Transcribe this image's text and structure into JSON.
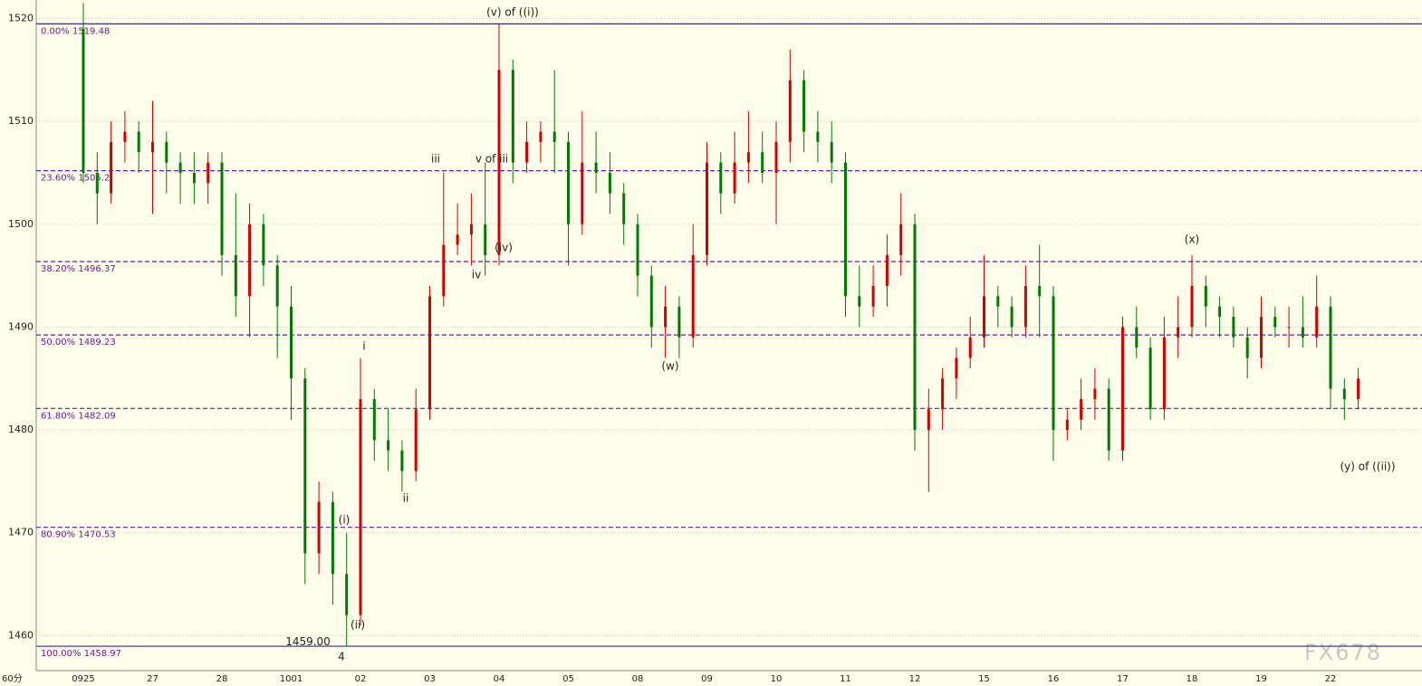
{
  "chart_data": {
    "type": "candlestick",
    "period_label": "60分",
    "watermark": "FX678",
    "categories": [
      "0925",
      null,
      null,
      null,
      null,
      "27",
      null,
      null,
      null,
      null,
      "28",
      null,
      null,
      null,
      null,
      "1001",
      null,
      null,
      null,
      null,
      "02",
      null,
      null,
      null,
      null,
      "03",
      null,
      null,
      null,
      null,
      "04",
      null,
      null,
      null,
      null,
      "05",
      null,
      null,
      null,
      null,
      "08",
      null,
      null,
      null,
      null,
      "09",
      null,
      null,
      null,
      null,
      "10",
      null,
      null,
      null,
      null,
      "11",
      null,
      null,
      null,
      null,
      "12",
      null,
      null,
      null,
      null,
      "15",
      null,
      null,
      null,
      null,
      "16",
      null,
      null,
      null,
      null,
      "17",
      null,
      null,
      null,
      null,
      "18",
      null,
      null,
      null,
      null,
      "19",
      null,
      null,
      null,
      null,
      "22",
      null,
      null
    ],
    "open": [
      1519,
      1505,
      1503,
      1508,
      1509,
      1507,
      1508,
      1506,
      1505,
      1504,
      1506,
      1497,
      1493,
      1500,
      1496,
      1492,
      1485,
      1468,
      1473,
      1466,
      1462,
      1483,
      1479,
      1478,
      1476,
      1482,
      1493,
      1498,
      1499,
      1500,
      1497,
      1515,
      1506,
      1508,
      1509,
      1508,
      1500,
      1506,
      1505,
      1503,
      1500,
      1495,
      1490,
      1492,
      1489,
      1497,
      1506,
      1503,
      1506,
      1507,
      1505,
      1508,
      1514,
      1509,
      1508,
      1506,
      1493,
      1492,
      1494,
      1497,
      1500,
      1480,
      1482,
      1485,
      1487,
      1489,
      1493,
      1492,
      1490,
      1494,
      1493,
      1480,
      1481,
      1483,
      1484,
      1478,
      1490,
      1488,
      1482,
      1489,
      1490,
      1494,
      1492,
      1491,
      1489,
      1487,
      1491,
      1490,
      1490,
      1489,
      1492,
      1484,
      1483
    ],
    "high": [
      1521.5,
      1507,
      1510,
      1511,
      1510,
      1512,
      1509,
      1507,
      1507,
      1507,
      1507,
      1503,
      1502,
      1501,
      1497,
      1494,
      1486,
      1475,
      1474,
      1470,
      1487,
      1484,
      1482,
      1479,
      1484,
      1494,
      1505,
      1502,
      1503,
      1506,
      1519.5,
      1516,
      1510,
      1510,
      1515,
      1509,
      1511,
      1509,
      1507,
      1504,
      1501,
      1496,
      1494,
      1493,
      1500,
      1508,
      1507,
      1509,
      1511,
      1509,
      1510,
      1517,
      1515,
      1511,
      1510,
      1507,
      1496,
      1496,
      1499,
      1503,
      1501,
      1484,
      1486,
      1488,
      1491,
      1497,
      1494,
      1493,
      1496,
      1498,
      1494,
      1482,
      1485,
      1486,
      1485,
      1491,
      1492,
      1489,
      1491,
      1493,
      1497,
      1495,
      1493,
      1492,
      1490,
      1493,
      1492,
      1492,
      1493,
      1495,
      1493,
      1485,
      1486
    ],
    "low": [
      1504,
      1500,
      1502,
      1506,
      1505,
      1501,
      1503,
      1502,
      1502,
      1502,
      1495,
      1491,
      1489,
      1494,
      1487,
      1481,
      1465,
      1466,
      1463,
      1459,
      1461,
      1477,
      1476,
      1474,
      1475,
      1481,
      1492,
      1497,
      1496,
      1495,
      1496,
      1504,
      1505,
      1506,
      1505,
      1496,
      1499,
      1503,
      1501,
      1498,
      1493,
      1488,
      1487,
      1487,
      1488,
      1496,
      1501,
      1502,
      1504,
      1504,
      1500,
      1506,
      1507,
      1506,
      1504,
      1491,
      1490,
      1491,
      1492,
      1495,
      1478,
      1474,
      1480,
      1483,
      1486,
      1488,
      1490,
      1489,
      1489,
      1489,
      1477,
      1479,
      1480,
      1481,
      1477,
      1477,
      1487,
      1481,
      1481,
      1487,
      1489,
      1490,
      1489,
      1488,
      1485,
      1486,
      1489,
      1488,
      1488,
      1488,
      1482,
      1481,
      1482
    ],
    "close": [
      1505,
      1503,
      1508,
      1509,
      1507,
      1508,
      1506,
      1505,
      1504,
      1506,
      1497,
      1493,
      1500,
      1496,
      1492,
      1485,
      1468,
      1473,
      1466,
      1462,
      1483,
      1479,
      1478,
      1476,
      1482,
      1493,
      1498,
      1499,
      1500,
      1497,
      1515,
      1506,
      1508,
      1509,
      1508,
      1500,
      1506,
      1505,
      1503,
      1500,
      1495,
      1490,
      1492,
      1489,
      1497,
      1506,
      1503,
      1506,
      1507,
      1505,
      1508,
      1514,
      1509,
      1508,
      1506,
      1493,
      1492,
      1494,
      1497,
      1500,
      1480,
      1482,
      1485,
      1487,
      1489,
      1493,
      1492,
      1490,
      1494,
      1493,
      1480,
      1481,
      1483,
      1484,
      1478,
      1490,
      1488,
      1482,
      1489,
      1490,
      1494,
      1492,
      1491,
      1489,
      1487,
      1491,
      1490,
      1490,
      1489,
      1492,
      1484,
      1483,
      1485
    ],
    "up_color": "#d40000",
    "down_color": "#007a00",
    "ylim": [
      1456.6,
      1521.8
    ],
    "yticks": [
      1460,
      1470,
      1480,
      1490,
      1500,
      1510,
      1520
    ],
    "grid": true,
    "fib_levels": [
      {
        "pct": "0.00%",
        "price": 1519.48
      },
      {
        "pct": "23.60%",
        "price": 1505.2
      },
      {
        "pct": "38.20%",
        "price": 1496.37
      },
      {
        "pct": "50.00%",
        "price": 1489.23
      },
      {
        "pct": "61.80%",
        "price": 1482.09
      },
      {
        "pct": "80.90%",
        "price": 1470.53
      },
      {
        "pct": "100.00%",
        "price": 1458.97
      }
    ],
    "low_label": {
      "value": 1459,
      "label": "1459.00"
    },
    "annotations": [
      "(v) of ((i))",
      "iii",
      "v of iii",
      "(iv)",
      "iv",
      "i",
      "ii",
      "(i)",
      "(ii)",
      "4",
      "(w)",
      "(x)",
      "(y) of ((ii))"
    ]
  }
}
